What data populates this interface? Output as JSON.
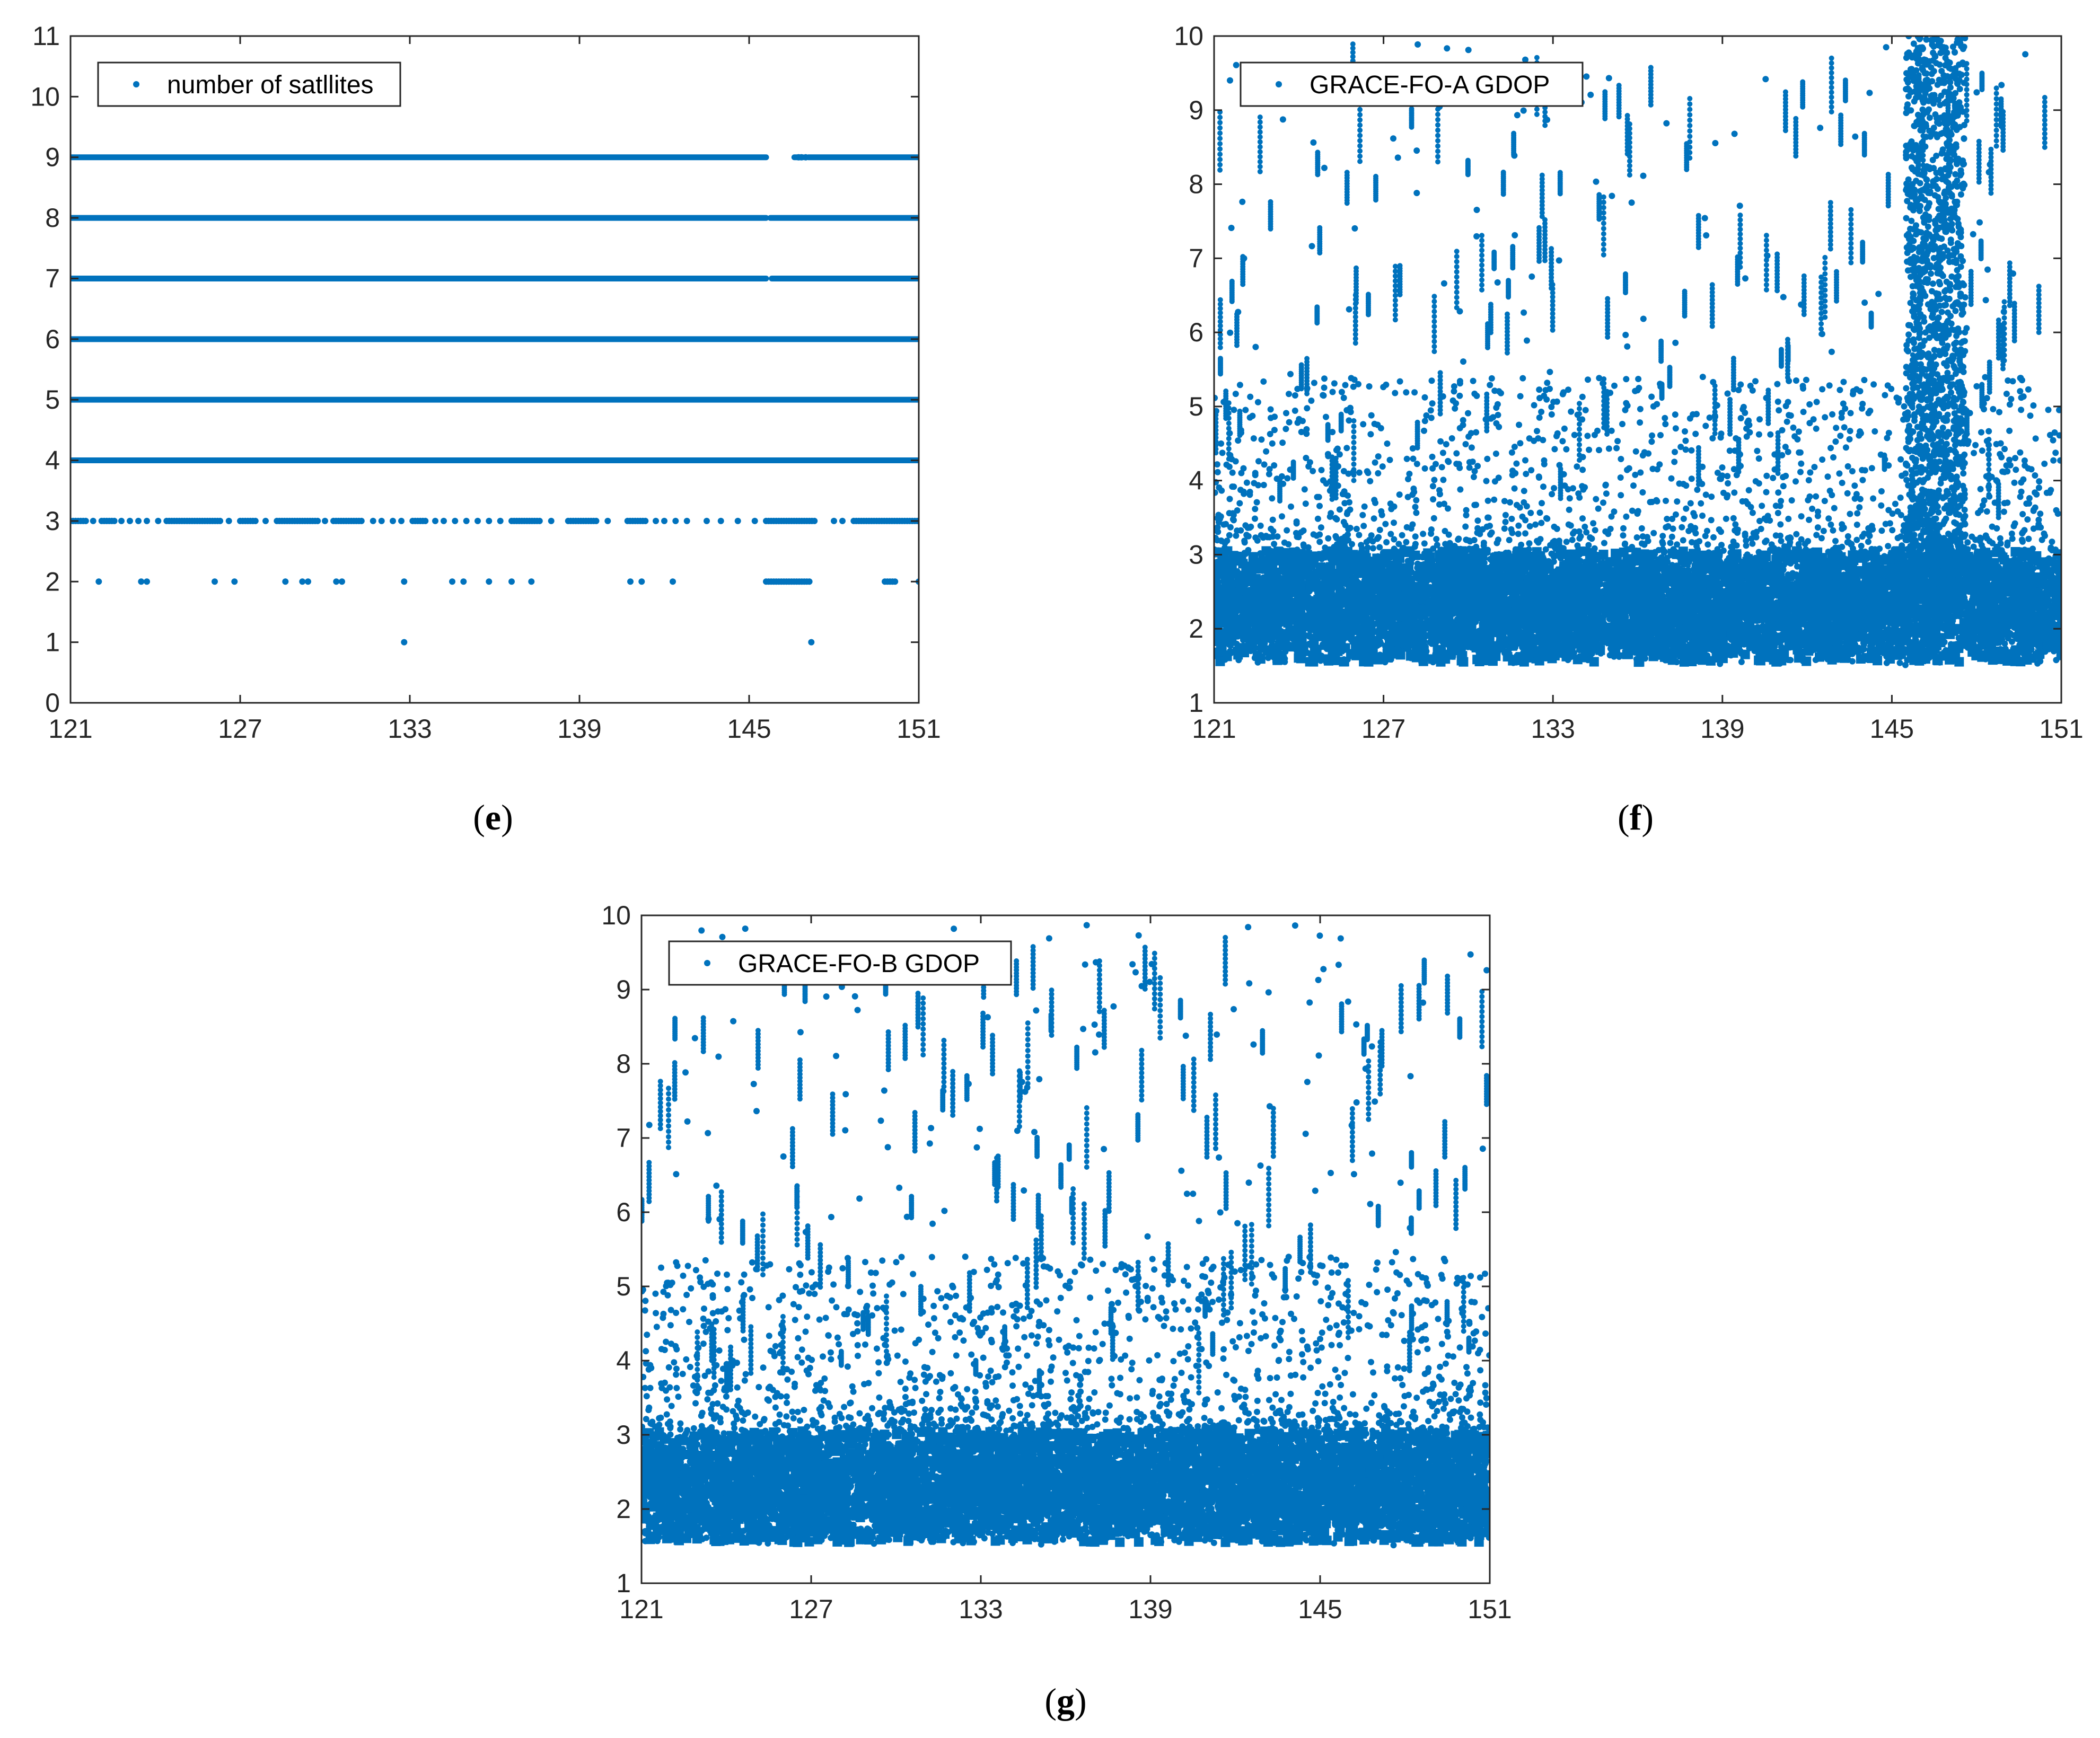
{
  "colors": {
    "series": "#0072BD",
    "axis": "#262626",
    "background": "#ffffff"
  },
  "chart_data": [
    {
      "id": "e",
      "type": "scatter",
      "panel_label": "e",
      "legend": "number of satllites",
      "legend_position": "top-left",
      "xlim": [
        121,
        151
      ],
      "ylim": [
        0,
        11
      ],
      "xticks": [
        121,
        127,
        133,
        139,
        145,
        151
      ],
      "yticks": [
        0,
        1,
        2,
        3,
        4,
        5,
        6,
        7,
        8,
        9,
        10,
        11
      ],
      "series": [
        {
          "name": "9 satellites",
          "y": 9,
          "coverage": "continuous",
          "gaps": [
            [
              145.6,
              146.6
            ],
            [
              146.9,
              147.1
            ]
          ],
          "sparse_points": [
            146.75,
            146.85,
            147.0
          ]
        },
        {
          "name": "8 satellites",
          "y": 8,
          "coverage": "continuous",
          "gaps": [
            [
              145.6,
              145.75
            ]
          ],
          "sparse_points": []
        },
        {
          "name": "7 satellites",
          "y": 7,
          "coverage": "continuous",
          "gaps": [
            [
              145.6,
              145.8
            ]
          ],
          "sparse_points": []
        },
        {
          "name": "6 satellites",
          "y": 6,
          "coverage": "continuous",
          "gaps": [],
          "sparse_points": []
        },
        {
          "name": "5 satellites",
          "y": 5,
          "coverage": "continuous",
          "gaps": [],
          "sparse_points": []
        },
        {
          "name": "4 satellites",
          "y": 4,
          "coverage": "continuous",
          "gaps": [],
          "sparse_points": []
        },
        {
          "name": "3 satellites",
          "y": 3,
          "coverage": "frequent",
          "segments": [
            [
              121.0,
              121.6
            ],
            [
              122.1,
              122.6
            ],
            [
              124.4,
              126.3
            ],
            [
              127.0,
              127.6
            ],
            [
              128.3,
              129.8
            ],
            [
              130.3,
              131.3
            ],
            [
              133.1,
              133.6
            ],
            [
              136.6,
              137.6
            ],
            [
              138.6,
              139.6
            ],
            [
              140.7,
              141.4
            ],
            [
              145.6,
              147.4
            ],
            [
              148.7,
              151.0
            ]
          ],
          "sparse_points": [
            121.8,
            122.8,
            123.1,
            123.4,
            123.7,
            124.1,
            126.6,
            127.9,
            130.0,
            131.7,
            132.0,
            132.4,
            132.7,
            133.9,
            134.2,
            134.6,
            135.0,
            135.4,
            135.8,
            136.2,
            138.0,
            140.0,
            141.7,
            142.0,
            142.4,
            142.8,
            143.5,
            144.0,
            144.6,
            145.2,
            148.0,
            148.3
          ]
        },
        {
          "name": "2 satellites",
          "y": 2,
          "coverage": "sparse",
          "segments": [
            [
              145.6,
              147.2
            ],
            [
              149.8,
              150.2
            ]
          ],
          "sparse_points": [
            122.0,
            123.5,
            123.7,
            126.1,
            126.8,
            128.6,
            129.2,
            129.4,
            130.4,
            130.6,
            132.8,
            134.5,
            134.9,
            135.8,
            136.6,
            137.3,
            140.8,
            141.2,
            142.3,
            151.0
          ]
        },
        {
          "name": "1 satellite",
          "y": 1,
          "coverage": "sparse",
          "segments": [],
          "sparse_points": [
            132.8,
            147.2
          ]
        }
      ]
    },
    {
      "id": "f",
      "type": "scatter",
      "panel_label": "f",
      "legend": "GRACE-FO-A GDOP",
      "legend_position": "top-left",
      "xlim": [
        121,
        151
      ],
      "ylim": [
        1,
        10
      ],
      "xticks": [
        121,
        127,
        133,
        139,
        145,
        151
      ],
      "yticks": [
        1,
        2,
        3,
        4,
        5,
        6,
        7,
        8,
        9,
        10
      ],
      "dense_band": {
        "y_min": 1.5,
        "y_max": 3.2
      },
      "typical_max": 5.0,
      "elevated_region": {
        "x_start": 145.5,
        "x_end": 147.6,
        "y_max": 10.0
      },
      "outlier_max": 10.0
    },
    {
      "id": "g",
      "type": "scatter",
      "panel_label": "g",
      "legend": "GRACE-FO-B GDOP",
      "legend_position": "top-left",
      "xlim": [
        121,
        151
      ],
      "ylim": [
        1,
        10
      ],
      "xticks": [
        121,
        127,
        133,
        139,
        145,
        151
      ],
      "yticks": [
        1,
        2,
        3,
        4,
        5,
        6,
        7,
        8,
        9,
        10
      ],
      "dense_band": {
        "y_min": 1.5,
        "y_max": 3.2
      },
      "typical_max": 5.0,
      "elevated_region": null,
      "outlier_max": 9.9
    }
  ]
}
